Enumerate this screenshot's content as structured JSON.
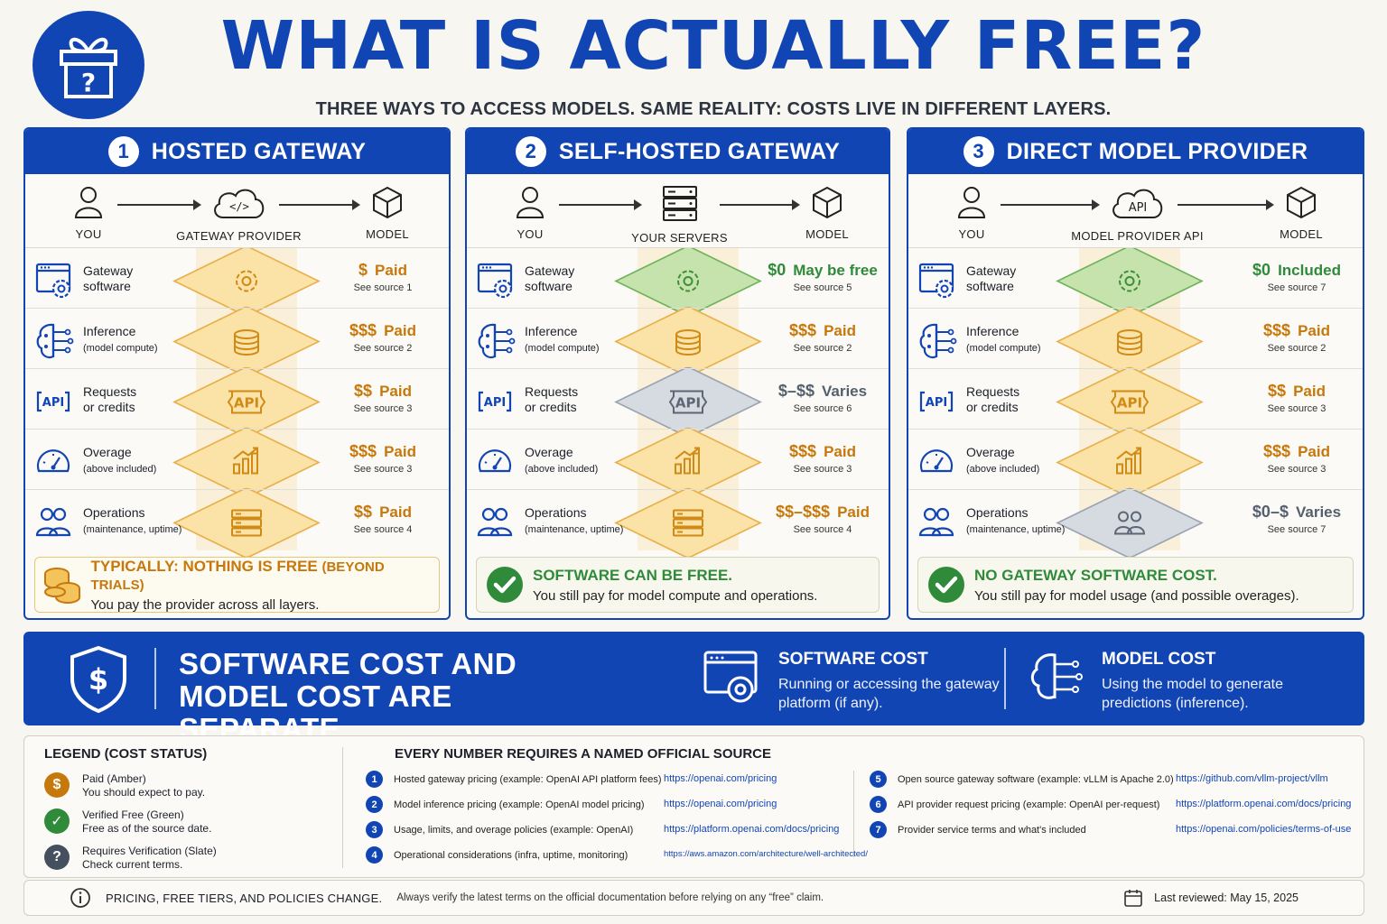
{
  "header": {
    "title": "WHAT IS ACTUALLY FREE?",
    "subtitle": "THREE WAYS TO ACCESS MODELS. SAME REALITY: COSTS LIVE IN DIFFERENT LAYERS."
  },
  "colors": {
    "brand_blue": "#1245b4",
    "paid_amber": "#c6780c",
    "free_green": "#2f8a3a",
    "verify_slate": "#55606e"
  },
  "row_labels": [
    {
      "title": "Gateway",
      "title2": "software",
      "icon": "gear-window-icon"
    },
    {
      "title": "Inference",
      "title2": "(model compute)",
      "icon": "brain-circuit-icon"
    },
    {
      "title": "Requests",
      "title2": "or credits",
      "icon": "api-icon"
    },
    {
      "title": "Overage",
      "title2": "(above included)",
      "icon": "gauge-icon"
    },
    {
      "title": "Operations",
      "title2": "(maintenance, uptime)",
      "icon": "people-icon"
    }
  ],
  "panels": [
    {
      "number": "1",
      "title": "HOSTED GATEWAY",
      "flow": [
        "YOU",
        "GATEWAY PROVIDER",
        "MODEL"
      ],
      "costs": [
        {
          "symbol": "$",
          "status": "Paid",
          "source": "See source 1",
          "tone": "amber"
        },
        {
          "symbol": "$$$",
          "status": "Paid",
          "source": "See source 2",
          "tone": "amber"
        },
        {
          "symbol": "$$",
          "status": "Paid",
          "source": "See source 3",
          "tone": "amber"
        },
        {
          "symbol": "$$$",
          "status": "Paid",
          "source": "See source 3",
          "tone": "amber"
        },
        {
          "symbol": "$$",
          "status": "Paid",
          "source": "See source 4",
          "tone": "amber"
        }
      ],
      "summary_title": "TYPICALLY: NOTHING IS FREE",
      "summary_title_note": "(BEYOND TRIALS)",
      "summary_text": "You pay the provider across all layers."
    },
    {
      "number": "2",
      "title": "SELF-HOSTED GATEWAY",
      "flow": [
        "YOU",
        "YOUR SERVERS",
        "MODEL"
      ],
      "costs": [
        {
          "symbol": "$0",
          "status": "May be free",
          "source": "See source 5",
          "tone": "green"
        },
        {
          "symbol": "$$$",
          "status": "Paid",
          "source": "See source 2",
          "tone": "amber"
        },
        {
          "symbol": "$–$$",
          "status": "Varies",
          "source": "See source 6",
          "tone": "slate"
        },
        {
          "symbol": "$$$",
          "status": "Paid",
          "source": "See source 3",
          "tone": "amber"
        },
        {
          "symbol": "$$–$$$",
          "status": "Paid",
          "source": "See source 4",
          "tone": "amber"
        }
      ],
      "summary_title": "SOFTWARE CAN BE FREE.",
      "summary_title_note": "",
      "summary_text": "You still pay for model compute and operations."
    },
    {
      "number": "3",
      "title": "DIRECT MODEL PROVIDER",
      "flow": [
        "YOU",
        "MODEL PROVIDER API",
        "MODEL"
      ],
      "flow_api_text": "API",
      "costs": [
        {
          "symbol": "$0",
          "status": "Included",
          "source": "See source 7",
          "tone": "green"
        },
        {
          "symbol": "$$$",
          "status": "Paid",
          "source": "See source 2",
          "tone": "amber"
        },
        {
          "symbol": "$$",
          "status": "Paid",
          "source": "See source 3",
          "tone": "amber"
        },
        {
          "symbol": "$$$",
          "status": "Paid",
          "source": "See source 3",
          "tone": "amber"
        },
        {
          "symbol": "$0–$",
          "status": "Varies",
          "source": "See source 7",
          "tone": "slate"
        }
      ],
      "summary_title": "NO GATEWAY SOFTWARE COST.",
      "summary_title_note": "",
      "summary_text": "You still pay for model usage (and possible overages)."
    }
  ],
  "api_glyph": "API",
  "banner": {
    "title": "SOFTWARE COST AND MODEL COST ARE SEPARATE",
    "software_title": "SOFTWARE COST",
    "software_text": "Running or accessing the gateway platform (if any).",
    "model_title": "MODEL COST",
    "model_text": "Using the model to generate predictions (inference)."
  },
  "legend": {
    "title": "LEGEND (COST STATUS)",
    "items": [
      {
        "glyph": "$",
        "label": "Paid (Amber)",
        "desc": "You should expect to pay."
      },
      {
        "glyph": "✓",
        "label": "Verified Free (Green)",
        "desc": "Free as of the source date."
      },
      {
        "glyph": "?",
        "label": "Requires Verification (Slate)",
        "desc": "Check current terms."
      }
    ]
  },
  "sources": {
    "title": "EVERY NUMBER REQUIRES A NAMED OFFICIAL SOURCE",
    "items": [
      {
        "num": "1",
        "text": "Hosted gateway pricing (example: OpenAI API platform fees)",
        "url": "https://openai.com/pricing"
      },
      {
        "num": "2",
        "text": "Model inference pricing (example: OpenAI model pricing)",
        "url": "https://openai.com/pricing"
      },
      {
        "num": "3",
        "text": "Usage, limits, and overage policies (example: OpenAI)",
        "url": "https://platform.openai.com/docs/pricing"
      },
      {
        "num": "4",
        "text": "Operational considerations (infra, uptime, monitoring)",
        "url": "https://aws.amazon.com/architecture/well-architected/"
      },
      {
        "num": "5",
        "text": "Open source gateway software (example: vLLM is Apache 2.0)",
        "url": "https://github.com/vllm-project/vllm"
      },
      {
        "num": "6",
        "text": "API provider request pricing (example: OpenAI per-request)",
        "url": "https://platform.openai.com/docs/pricing"
      },
      {
        "num": "7",
        "text": "Provider service terms and what's included",
        "url": "https://openai.com/policies/terms-of-use"
      }
    ]
  },
  "footer": {
    "main": "PRICING, FREE TIERS, AND POLICIES CHANGE.",
    "sub": "Always verify the latest terms on the official documentation before relying on any “free” claim.",
    "reviewed": "Last reviewed: May 15, 2025"
  }
}
